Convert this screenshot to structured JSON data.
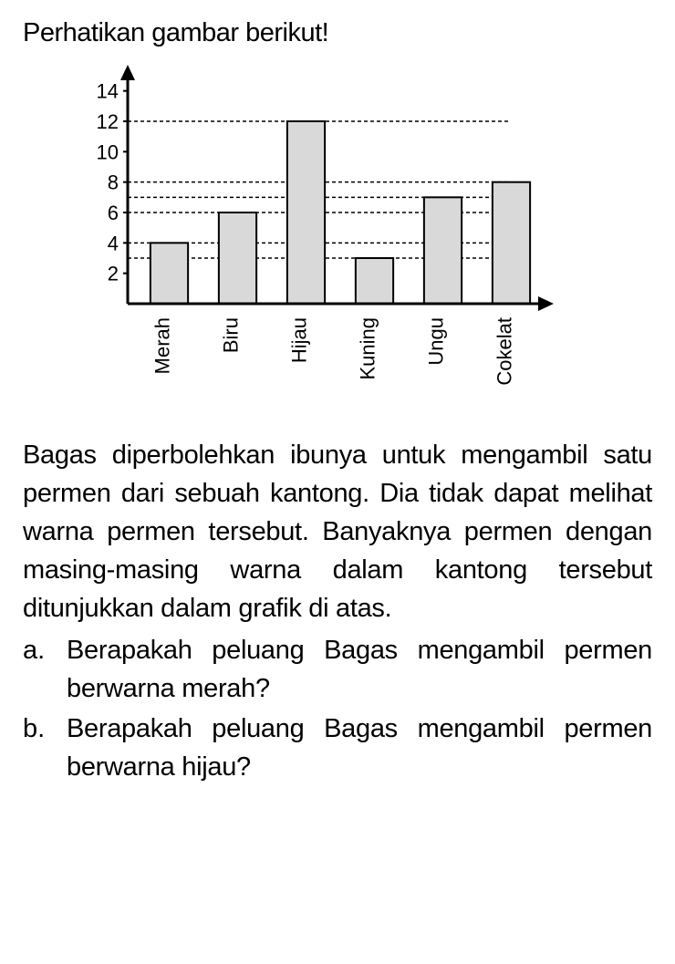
{
  "title": "Perhatikan gambar berikut!",
  "chart": {
    "type": "bar",
    "categories": [
      "Merah",
      "Biru",
      "Hijau",
      "Kuning",
      "Ungu",
      "Cokelat"
    ],
    "values": [
      4,
      6,
      12,
      3,
      7,
      8
    ],
    "ylim": [
      0,
      15
    ],
    "ytick_labels": [
      "2",
      "4",
      "6",
      "8",
      "10",
      "12",
      "14"
    ],
    "ytick_values": [
      2,
      4,
      6,
      8,
      10,
      12,
      14
    ],
    "gridlines": [
      3,
      4,
      6,
      7,
      8,
      12
    ],
    "bar_fill": "#d9d9d9",
    "bar_stroke": "#000000",
    "axis_color": "#000000",
    "grid_style": "dashed",
    "label_fontsize": 22,
    "ylabel_fontsize": 22,
    "background_color": "#ffffff",
    "bar_width": 0.55
  },
  "body": "Bagas diperbolehkan ibunya untuk mengambil satu permen dari sebuah kantong. Dia tidak dapat melihat warna permen tersebut. Banyaknya permen dengan masing-masing warna dalam kantong tersebut ditunjukkan dalam grafik di atas.",
  "questions": {
    "a": {
      "label": "a.",
      "text": "Berapakah peluang Bagas mengambil permen berwarna merah?"
    },
    "b": {
      "label": "b.",
      "text": "Berapakah peluang Bagas mengambil permen berwarna hijau?"
    }
  }
}
